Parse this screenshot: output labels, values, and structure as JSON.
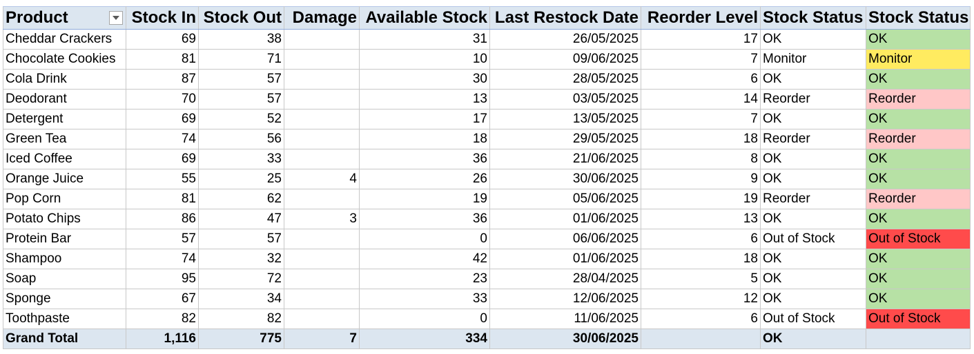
{
  "headers": {
    "product": "Product",
    "stock_in": "Stock In",
    "stock_out": "Stock Out",
    "damage": "Damage",
    "available_stock": "Available Stock",
    "last_restock_date": "Last Restock Date",
    "reorder_level": "Reorder Level",
    "stock_status": "Stock Status",
    "stock_status_formatted": "Stock Status"
  },
  "filter_icon": "chevron-down-icon",
  "status_colors": {
    "OK": "#b7e1a5",
    "Monitor": "#ffeb60",
    "Reorder": "#ffc7c7",
    "Out of Stock": "#ff4b4b"
  },
  "rows": [
    {
      "product": "Cheddar Crackers",
      "stock_in": "69",
      "stock_out": "38",
      "damage": "",
      "available_stock": "31",
      "last_restock_date": "26/05/2025",
      "reorder_level": "17",
      "stock_status": "OK",
      "stock_status_formatted": "OK"
    },
    {
      "product": "Chocolate Cookies",
      "stock_in": "81",
      "stock_out": "71",
      "damage": "",
      "available_stock": "10",
      "last_restock_date": "09/06/2025",
      "reorder_level": "7",
      "stock_status": "Monitor",
      "stock_status_formatted": "Monitor"
    },
    {
      "product": "Cola Drink",
      "stock_in": "87",
      "stock_out": "57",
      "damage": "",
      "available_stock": "30",
      "last_restock_date": "28/05/2025",
      "reorder_level": "6",
      "stock_status": "OK",
      "stock_status_formatted": "OK"
    },
    {
      "product": "Deodorant",
      "stock_in": "70",
      "stock_out": "57",
      "damage": "",
      "available_stock": "13",
      "last_restock_date": "03/05/2025",
      "reorder_level": "14",
      "stock_status": "Reorder",
      "stock_status_formatted": "Reorder"
    },
    {
      "product": "Detergent",
      "stock_in": "69",
      "stock_out": "52",
      "damage": "",
      "available_stock": "17",
      "last_restock_date": "13/05/2025",
      "reorder_level": "7",
      "stock_status": "OK",
      "stock_status_formatted": "OK"
    },
    {
      "product": "Green Tea",
      "stock_in": "74",
      "stock_out": "56",
      "damage": "",
      "available_stock": "18",
      "last_restock_date": "29/05/2025",
      "reorder_level": "18",
      "stock_status": "Reorder",
      "stock_status_formatted": "Reorder"
    },
    {
      "product": "Iced Coffee",
      "stock_in": "69",
      "stock_out": "33",
      "damage": "",
      "available_stock": "36",
      "last_restock_date": "21/06/2025",
      "reorder_level": "8",
      "stock_status": "OK",
      "stock_status_formatted": "OK"
    },
    {
      "product": "Orange Juice",
      "stock_in": "55",
      "stock_out": "25",
      "damage": "4",
      "available_stock": "26",
      "last_restock_date": "30/06/2025",
      "reorder_level": "9",
      "stock_status": "OK",
      "stock_status_formatted": "OK"
    },
    {
      "product": "Pop Corn",
      "stock_in": "81",
      "stock_out": "62",
      "damage": "",
      "available_stock": "19",
      "last_restock_date": "05/06/2025",
      "reorder_level": "19",
      "stock_status": "Reorder",
      "stock_status_formatted": "Reorder"
    },
    {
      "product": "Potato Chips",
      "stock_in": "86",
      "stock_out": "47",
      "damage": "3",
      "available_stock": "36",
      "last_restock_date": "01/06/2025",
      "reorder_level": "13",
      "stock_status": "OK",
      "stock_status_formatted": "OK"
    },
    {
      "product": "Protein Bar",
      "stock_in": "57",
      "stock_out": "57",
      "damage": "",
      "available_stock": "0",
      "last_restock_date": "06/06/2025",
      "reorder_level": "6",
      "stock_status": "Out of Stock",
      "stock_status_formatted": "Out of Stock"
    },
    {
      "product": "Shampoo",
      "stock_in": "74",
      "stock_out": "32",
      "damage": "",
      "available_stock": "42",
      "last_restock_date": "01/06/2025",
      "reorder_level": "18",
      "stock_status": "OK",
      "stock_status_formatted": "OK"
    },
    {
      "product": "Soap",
      "stock_in": "95",
      "stock_out": "72",
      "damage": "",
      "available_stock": "23",
      "last_restock_date": "28/04/2025",
      "reorder_level": "5",
      "stock_status": "OK",
      "stock_status_formatted": "OK"
    },
    {
      "product": "Sponge",
      "stock_in": "67",
      "stock_out": "34",
      "damage": "",
      "available_stock": "33",
      "last_restock_date": "12/06/2025",
      "reorder_level": "12",
      "stock_status": "OK",
      "stock_status_formatted": "OK"
    },
    {
      "product": "Toothpaste",
      "stock_in": "82",
      "stock_out": "82",
      "damage": "",
      "available_stock": "0",
      "last_restock_date": "11/06/2025",
      "reorder_level": "6",
      "stock_status": "Out of Stock",
      "stock_status_formatted": "Out of Stock"
    }
  ],
  "grand_total": {
    "label": "Grand Total",
    "stock_in": "1,116",
    "stock_out": "775",
    "damage": "7",
    "available_stock": "334",
    "last_restock_date": "30/06/2025",
    "reorder_level": "",
    "stock_status": "OK",
    "stock_status_formatted": ""
  }
}
